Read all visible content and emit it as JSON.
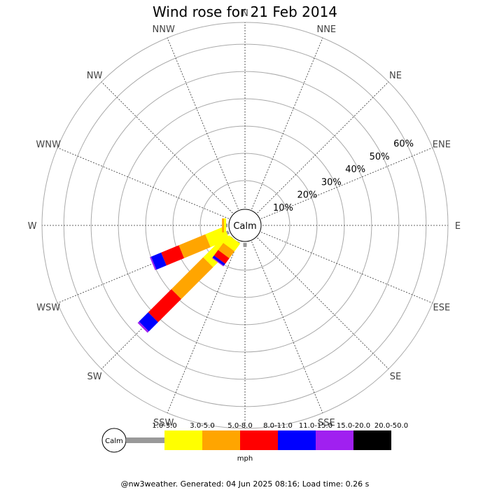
{
  "chart_data": {
    "type": "windrose",
    "title": "Wind rose for 21 Feb 2014",
    "calm_label": "Calm",
    "directions": [
      "N",
      "NNE",
      "NE",
      "ENE",
      "E",
      "ESE",
      "SE",
      "SSE",
      "S",
      "SSW",
      "SW",
      "WSW",
      "W",
      "WNW",
      "NW",
      "NNW"
    ],
    "rings": [
      "10%",
      "20%",
      "30%",
      "40%",
      "50%",
      "60%"
    ],
    "ring_values": [
      10,
      20,
      30,
      40,
      50,
      60
    ],
    "rmax": 68,
    "unit": "mph",
    "speed_bins": [
      {
        "label": "1.0-3.0",
        "color": "#999999"
      },
      {
        "label": "3.0-5.0",
        "color": "#ffff00"
      },
      {
        "label": "5.0-8.0",
        "color": "#ffa500"
      },
      {
        "label": "8.0-11.0",
        "color": "#ff0000"
      },
      {
        "label": "11.0-15.0",
        "color": "#0000ff"
      },
      {
        "label": "15.0-20.0",
        "color": "#a020f0"
      },
      {
        "label": "20.0-50.0",
        "color": "#000000"
      }
    ],
    "series": [
      {
        "direction": "S",
        "values": [
          1.5,
          0,
          0,
          0,
          0,
          0,
          0
        ]
      },
      {
        "direction": "SSW",
        "values": [
          0.8,
          0,
          0,
          0,
          0,
          0,
          0
        ]
      },
      {
        "direction": "SW",
        "values": [
          1.2,
          11.5,
          16.5,
          12,
          4.8,
          0.7,
          0
        ]
      },
      {
        "direction": "WSW",
        "values": [
          0.8,
          7.5,
          10.5,
          7,
          4,
          0.5,
          0
        ]
      },
      {
        "direction": "W",
        "values": [
          0.5,
          0.8,
          0.7,
          0,
          0,
          0,
          0
        ]
      },
      {
        "direction": "SSW",
        "values": [
          0,
          3.5,
          3.2,
          2.5,
          0.9,
          0.3,
          0
        ],
        "angle_offset": 14
      }
    ],
    "footer": "@nw3weather. Generated: 04 Jun 2025 08:16; Load time: 0.26 s"
  }
}
